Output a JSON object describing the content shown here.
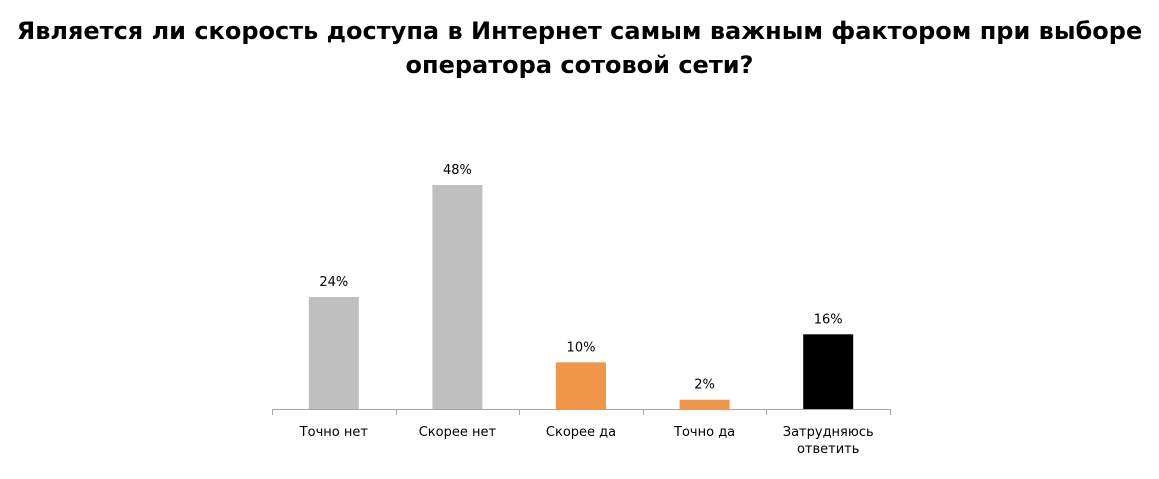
{
  "chart_data": {
    "type": "bar",
    "title_lines": [
      "Является ли скорость доступа в Интернет самым важным фактором при выборе",
      "оператора сотовой сети?"
    ],
    "categories": [
      [
        "Точно нет"
      ],
      [
        "Скорее нет"
      ],
      [
        "Скорее да"
      ],
      [
        "Точно да"
      ],
      [
        "Затрудняюсь",
        "ответить"
      ]
    ],
    "values": [
      24,
      48,
      10,
      2,
      16
    ],
    "value_labels": [
      "24%",
      "48%",
      "10%",
      "2%",
      "16%"
    ],
    "colors": [
      "#bfbfbf",
      "#bfbfbf",
      "#f0974a",
      "#f0974a",
      "#000000"
    ],
    "axis_color": "#a6a6a6",
    "unit": "%",
    "ylim": [
      0,
      48
    ],
    "grid": false,
    "legend": "none"
  }
}
